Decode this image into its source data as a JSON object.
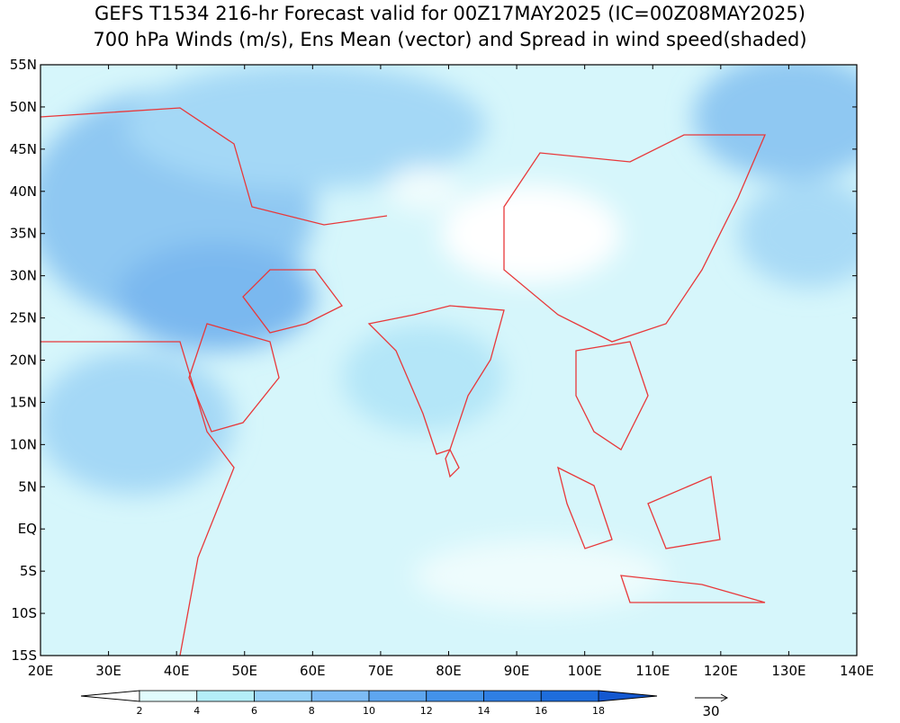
{
  "title": [
    "GEFS T1534 216-hr Forecast valid for 00Z17MAY2025 (IC=00Z08MAY2025)",
    "700 hPa Winds (m/s), Ens Mean (vector) and Spread in wind speed(shaded)"
  ],
  "map": {
    "lat_labels": [
      "55N",
      "50N",
      "45N",
      "40N",
      "35N",
      "30N",
      "25N",
      "20N",
      "15N",
      "10N",
      "5N",
      "EQ",
      "5S",
      "10S",
      "15S"
    ],
    "lon_labels": [
      "20E",
      "30E",
      "40E",
      "50E",
      "60E",
      "70E",
      "80E",
      "90E",
      "100E",
      "110E",
      "120E",
      "130E",
      "140E"
    ]
  },
  "colorbar": {
    "labels": [
      "2",
      "4",
      "6",
      "8",
      "10",
      "12",
      "14",
      "16",
      "18"
    ],
    "colors": [
      "#ffffff",
      "#e1fcfd",
      "#b4eef8",
      "#96d2f8",
      "#7dbcf5",
      "#5ea6ef",
      "#4392ea",
      "#2f7fe4",
      "#1e6ddc",
      "#1458d0"
    ]
  },
  "reference_vector": {
    "label": "30"
  }
}
